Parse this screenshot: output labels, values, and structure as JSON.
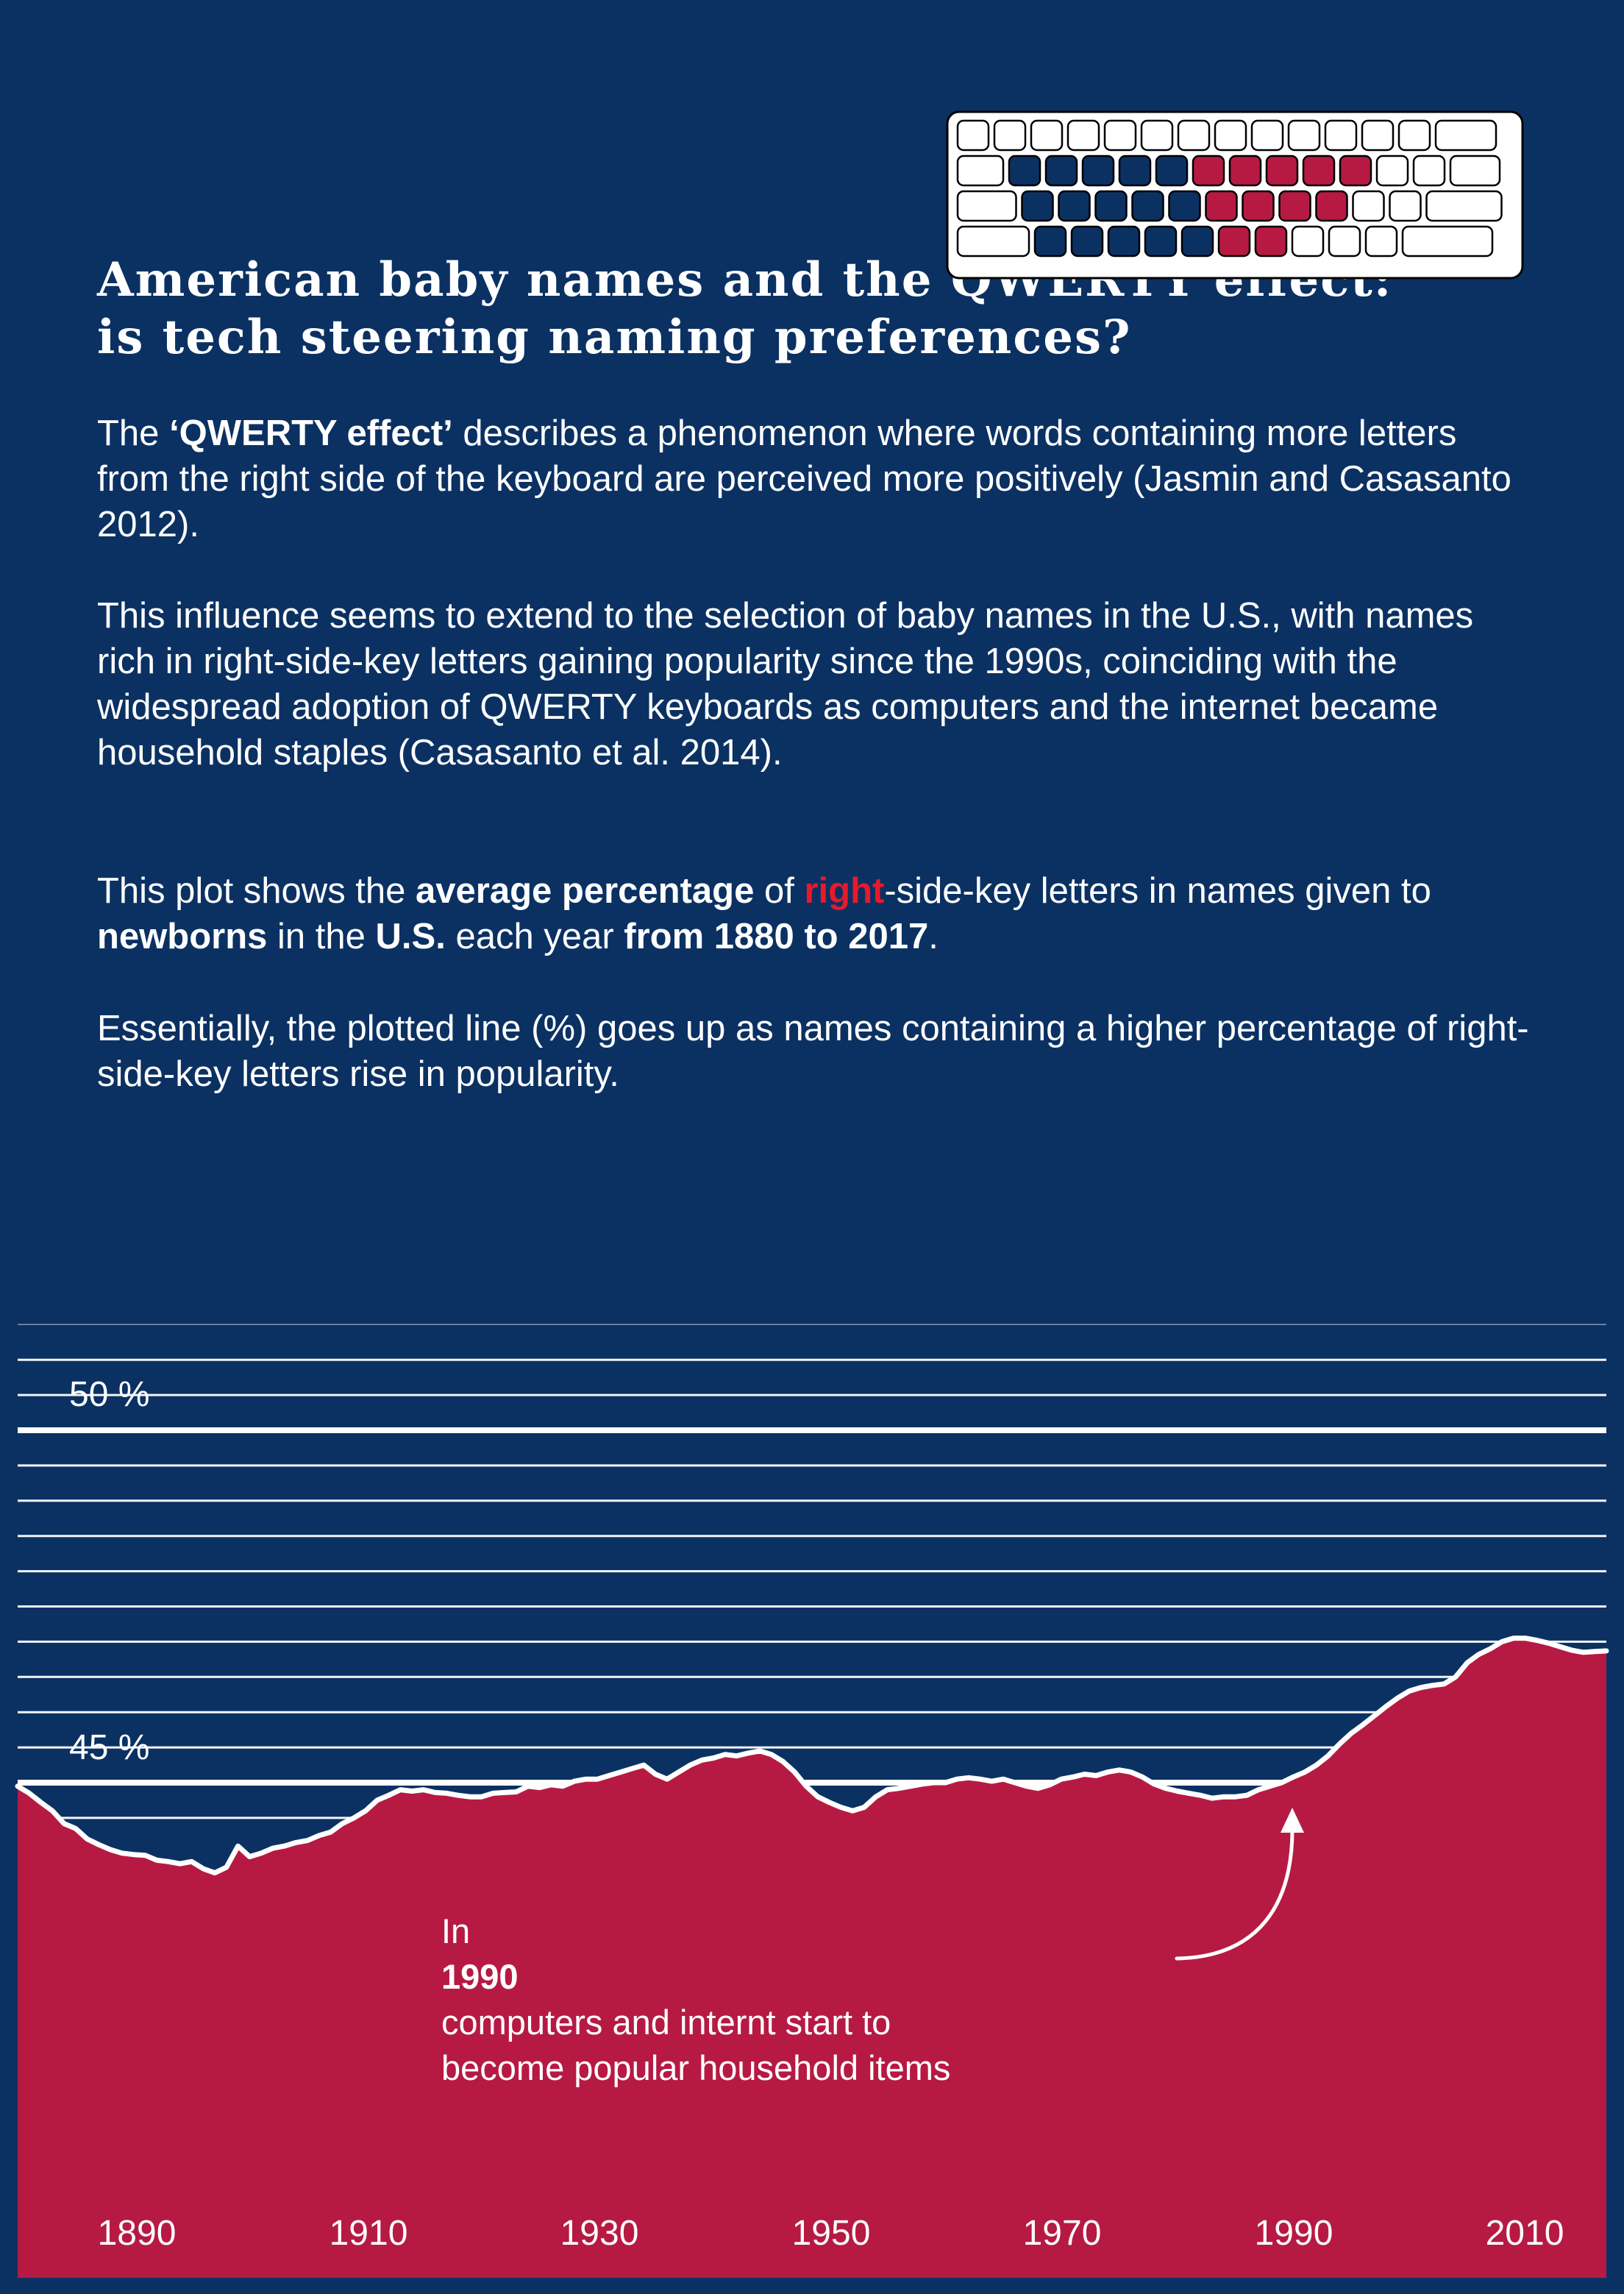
{
  "title_lines": [
    "American baby names and the QWERTY effect:",
    "is tech steering naming preferences?"
  ],
  "paragraphs": {
    "p1": {
      "pre": "The ",
      "bold": "‘QWERTY effect’",
      "post": " describes a phenomenon where words containing more letters from the right side of the keyboard are perceived more positively (Jasmin and Casasanto 2012)."
    },
    "p2": "This influence seems to extend to the selection of baby names in the U.S., with names rich in right-side-key letters gaining popularity since the 1990s, coinciding with the widespread adoption of QWERTY keyboards as computers and the internet became household staples (Casasanto et al. 2014).",
    "p3": {
      "t1": "This plot shows the ",
      "b1": "average percentage",
      "t2": " of ",
      "red": "right",
      "t3": "-side-key letters in names given to ",
      "b2": "newborns",
      "t4": " in the ",
      "b3": "U.S.",
      "t5": " each year ",
      "b4": "from 1880 to 2017",
      "t6": "."
    },
    "p4": "Essentially, the plotted line (%) goes up as names containing a higher percentage of right-side-key letters rise in popularity."
  },
  "annotation": {
    "pre": "In ",
    "bold": "1990",
    "post": " computers and internt start to",
    "line2": "become popular household items"
  },
  "colors": {
    "background": "#0b3163",
    "area": "#b61a43",
    "line": "#ffffff",
    "highlight": "#e8192c",
    "key_blue": "#0b3163",
    "key_red": "#b61a43"
  },
  "keyboard_icon": "qwerty-keyboard-icon",
  "chart_data": {
    "type": "area",
    "title": "",
    "xlabel": "",
    "ylabel": "",
    "xlim": [
      1880,
      2017
    ],
    "ylim": [
      40.5,
      52
    ],
    "x_ticks": [
      1890,
      1910,
      1930,
      1950,
      1970,
      1990,
      2010
    ],
    "y_tick_labels": [
      {
        "value": 50,
        "label": "50 %"
      },
      {
        "value": 45,
        "label": "45 %"
      }
    ],
    "gridlines_major": [
      45,
      50
    ],
    "gridlines_minor": [
      44.5,
      45.5,
      46,
      46.5,
      47,
      47.5,
      48,
      48.5,
      49,
      49.5,
      50.5,
      51
    ],
    "series": [
      {
        "x": [
          1880,
          1881,
          1882,
          1883,
          1884,
          1885,
          1886,
          1887,
          1888,
          1889,
          1890,
          1891,
          1892,
          1893,
          1894,
          1895,
          1896,
          1897,
          1898,
          1899,
          1900,
          1901,
          1902,
          1903,
          1904,
          1905,
          1906,
          1907,
          1908,
          1909,
          1910,
          1911,
          1912,
          1913,
          1914,
          1915,
          1916,
          1917,
          1918,
          1919,
          1920,
          1921,
          1922,
          1923,
          1924,
          1925,
          1926,
          1927,
          1928,
          1929,
          1930,
          1931,
          1932,
          1933,
          1934,
          1935,
          1936,
          1937,
          1938,
          1939,
          1940,
          1941,
          1942,
          1943,
          1944,
          1945,
          1946,
          1947,
          1948,
          1949,
          1950,
          1951,
          1952,
          1953,
          1954,
          1955,
          1956,
          1957,
          1958,
          1959,
          1960,
          1961,
          1962,
          1963,
          1964,
          1965,
          1966,
          1967,
          1968,
          1969,
          1970,
          1971,
          1972,
          1973,
          1974,
          1975,
          1976,
          1977,
          1978,
          1979,
          1980,
          1981,
          1982,
          1983,
          1984,
          1985,
          1986,
          1987,
          1988,
          1989,
          1990,
          1991,
          1992,
          1993,
          1994,
          1995,
          1996,
          1997,
          1998,
          1999,
          2000,
          2001,
          2002,
          2003,
          2004,
          2005,
          2006,
          2007,
          2008,
          2009,
          2010,
          2011,
          2012,
          2013,
          2014,
          2015,
          2016,
          2017
        ],
        "values": [
          44.95,
          44.85,
          44.72,
          44.6,
          44.42,
          44.35,
          44.2,
          44.12,
          44.05,
          44.0,
          43.98,
          43.97,
          43.9,
          43.88,
          43.85,
          43.88,
          43.78,
          43.72,
          43.8,
          44.1,
          43.95,
          44.0,
          44.07,
          44.1,
          44.15,
          44.18,
          44.25,
          44.3,
          44.42,
          44.5,
          44.6,
          44.75,
          44.82,
          44.9,
          44.88,
          44.9,
          44.86,
          44.85,
          44.82,
          44.8,
          44.8,
          44.85,
          44.86,
          44.87,
          44.95,
          44.93,
          44.97,
          44.95,
          45.02,
          45.05,
          45.05,
          45.1,
          45.15,
          45.2,
          45.25,
          45.12,
          45.05,
          45.15,
          45.25,
          45.32,
          45.35,
          45.4,
          45.38,
          45.42,
          45.45,
          45.4,
          45.3,
          45.15,
          44.95,
          44.8,
          44.72,
          44.65,
          44.6,
          44.65,
          44.8,
          44.9,
          44.92,
          44.95,
          44.98,
          45.0,
          45.0,
          45.05,
          45.07,
          45.05,
          45.02,
          45.05,
          45.0,
          44.95,
          44.92,
          44.97,
          45.05,
          45.08,
          45.12,
          45.1,
          45.15,
          45.18,
          45.15,
          45.08,
          44.98,
          44.92,
          44.88,
          44.85,
          44.82,
          44.78,
          44.8,
          44.8,
          44.82,
          44.9,
          44.95,
          45.0,
          45.08,
          45.15,
          45.25,
          45.38,
          45.55,
          45.7,
          45.82,
          45.95,
          46.08,
          46.2,
          46.3,
          46.35,
          46.38,
          46.4,
          46.5,
          46.7,
          46.82,
          46.9,
          47.0,
          47.05,
          47.05,
          47.02,
          46.98,
          46.93,
          46.88,
          46.85,
          46.86,
          46.87
        ],
        "line_color": "#ffffff",
        "fill_color": "#b61a43"
      }
    ]
  }
}
